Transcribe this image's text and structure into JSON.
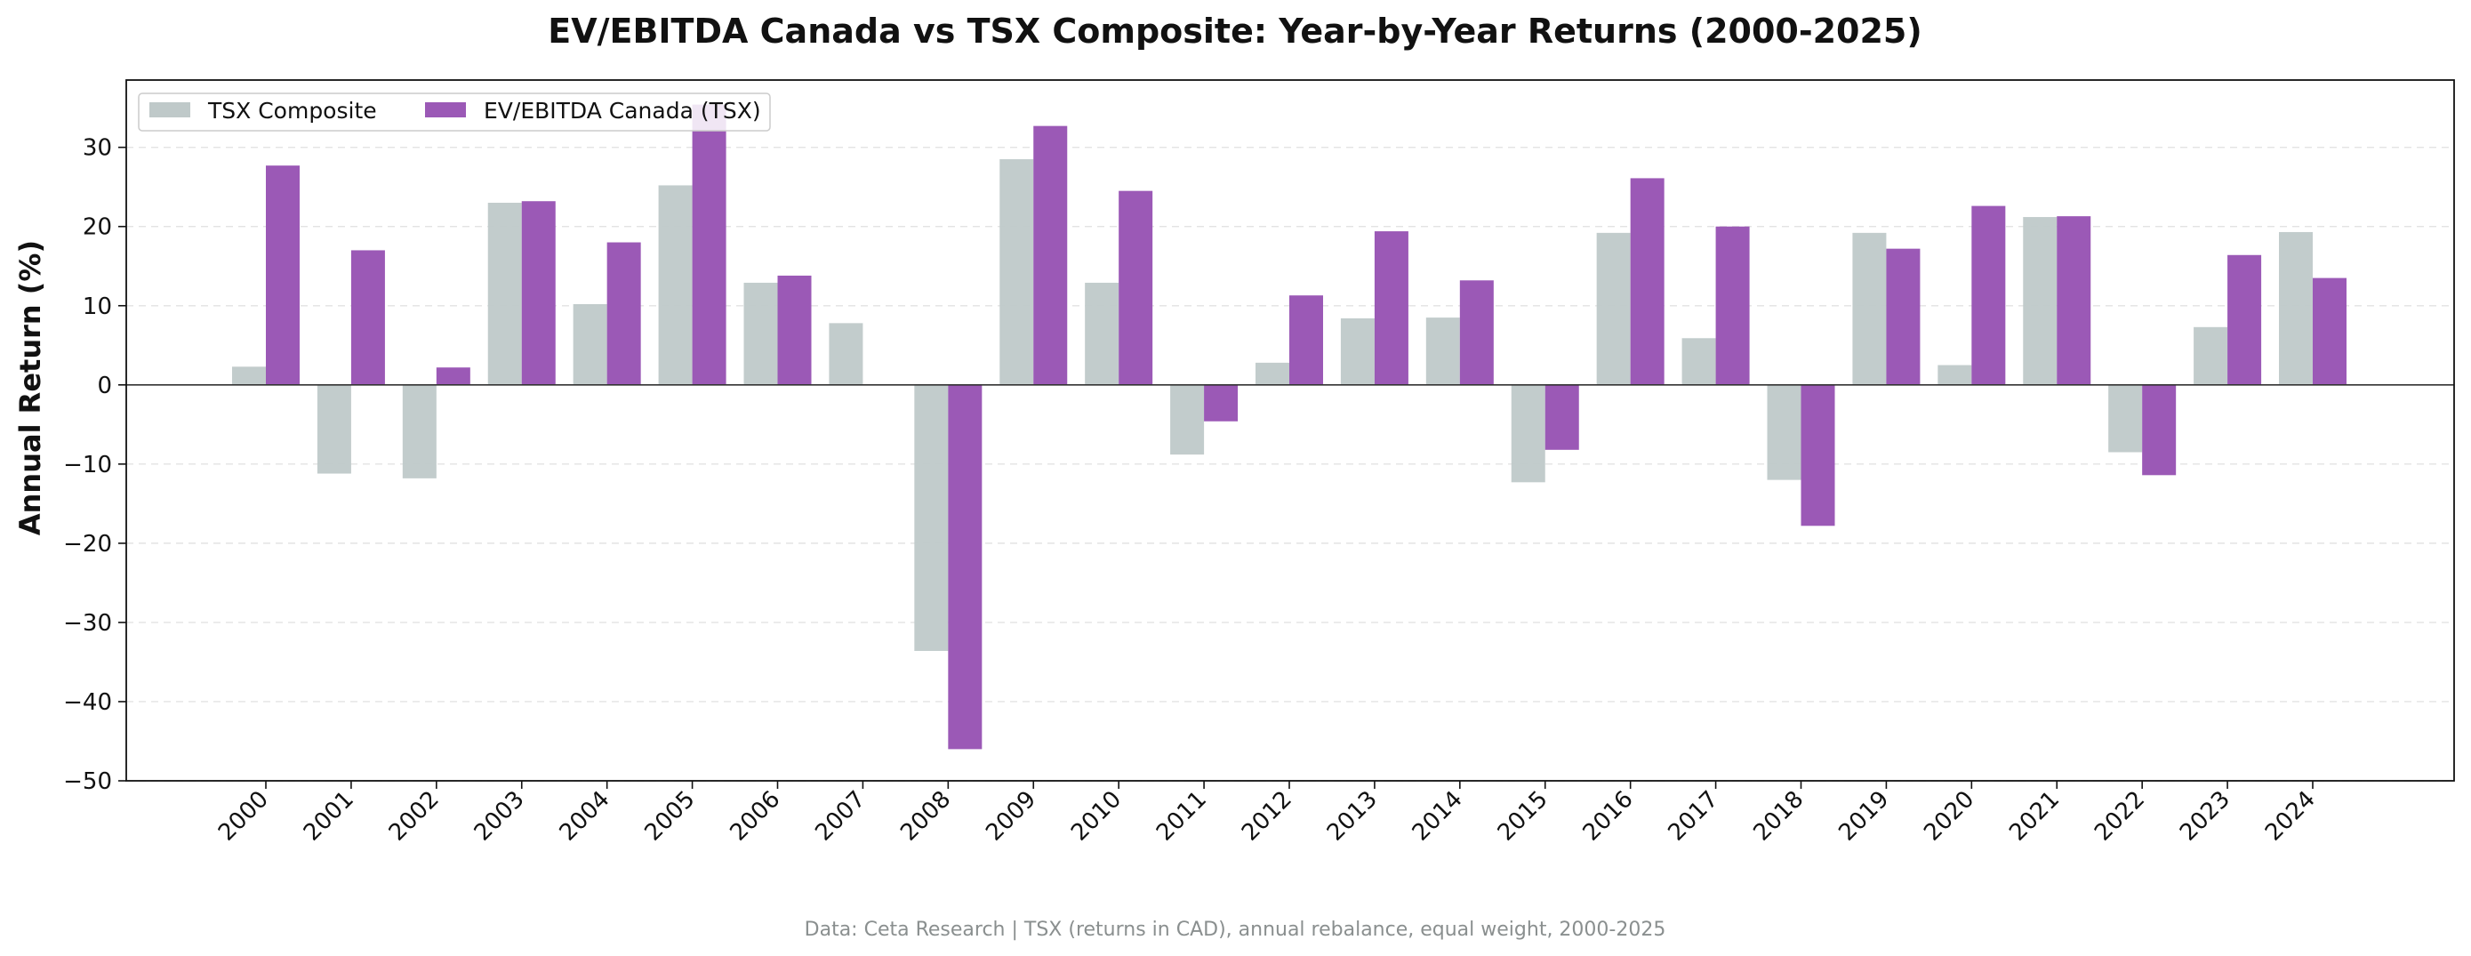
{
  "chart_data": {
    "type": "bar",
    "title": "EV/EBITDA Canada vs TSX Composite: Year-by-Year Returns (2000-2025)",
    "xlabel": "",
    "ylabel": "Annual Return (%)",
    "ylim": [
      -50,
      38.5
    ],
    "yticks": [
      "30",
      "20",
      "10",
      "0",
      "−10",
      "−20",
      "−30",
      "−40",
      "−50"
    ],
    "ytick_values": [
      30,
      20,
      10,
      0,
      -10,
      -20,
      -30,
      -40,
      -50
    ],
    "grid": "horizontal dashed",
    "legend_position": "top-left",
    "categories": [
      "2000",
      "2001",
      "2002",
      "2003",
      "2004",
      "2005",
      "2006",
      "2007",
      "2008",
      "2009",
      "2010",
      "2011",
      "2012",
      "2013",
      "2014",
      "2015",
      "2016",
      "2017",
      "2018",
      "2019",
      "2020",
      "2021",
      "2022",
      "2023",
      "2024"
    ],
    "series": [
      {
        "name": "TSX Composite",
        "color": "#bfc9c9",
        "values": [
          2.3,
          -11.2,
          -11.8,
          23.0,
          10.2,
          25.2,
          12.9,
          7.8,
          -33.6,
          28.5,
          12.9,
          -8.8,
          2.8,
          8.4,
          8.5,
          -12.3,
          19.2,
          5.9,
          -12.0,
          19.2,
          2.5,
          21.2,
          -8.5,
          7.3,
          19.3
        ]
      },
      {
        "name": "EV/EBITDA Canada (TSX)",
        "color": "#9b59b6",
        "values": [
          27.7,
          17.0,
          2.2,
          23.2,
          18.0,
          35.4,
          13.8,
          0.0,
          -46.0,
          32.7,
          24.5,
          -4.6,
          11.3,
          19.4,
          13.2,
          -8.2,
          26.1,
          20.0,
          -17.8,
          17.2,
          22.6,
          21.3,
          -11.4,
          16.4,
          13.5
        ]
      }
    ],
    "source_note": "Data: Ceta Research | TSX (returns in CAD), annual rebalance, equal weight, 2000-2025"
  }
}
